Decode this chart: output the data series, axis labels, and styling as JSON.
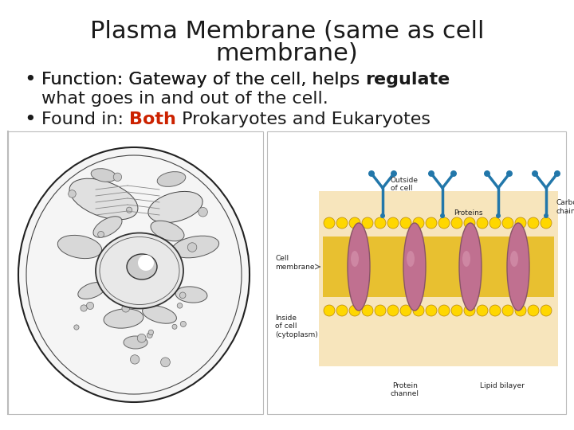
{
  "title_line1": "Plasma Membrane (same as cell",
  "title_line2": "membrane)",
  "bullet1_part1": "Function: Gateway of the cell, helps ",
  "bullet1_bold": "regulate",
  "bullet1_line2": "what goes in and out of the cell.",
  "bullet2_pre": "Found in: ",
  "bullet2_colored": "Both",
  "bullet2_post": " Prokaryotes and Eukaryotes",
  "bg_color": "#ffffff",
  "title_color": "#1a1a1a",
  "text_color": "#1a1a1a",
  "both_color": "#cc2200",
  "title_fontsize": 22,
  "bullet_fontsize": 16,
  "label_fontsize": 6.5
}
